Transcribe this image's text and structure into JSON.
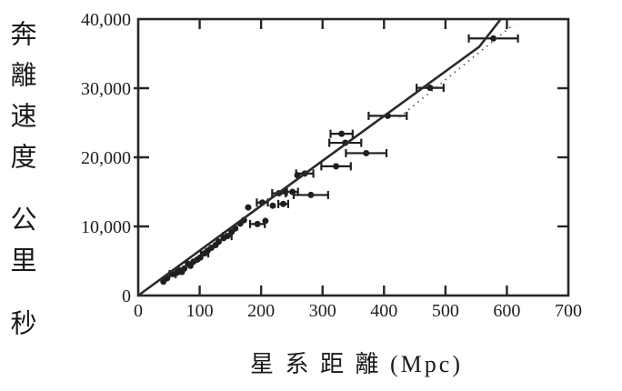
{
  "chart_data": {
    "type": "scatter",
    "title": "",
    "xlabel": "星 系 距 離 (Mpc)",
    "ylabel_groups": [
      "奔離速度",
      "公里",
      "秒"
    ],
    "xlim": [
      0,
      700
    ],
    "ylim": [
      0,
      40000
    ],
    "x_ticks": [
      0,
      100,
      200,
      300,
      400,
      500,
      600,
      700
    ],
    "x_tick_labels": [
      "0",
      "100",
      "200",
      "300",
      "400",
      "500",
      "600",
      "700"
    ],
    "y_ticks": [
      0,
      10000,
      20000,
      30000,
      40000
    ],
    "y_tick_labels": [
      "0",
      "10,000",
      "20,000",
      "30,000",
      "40,000"
    ],
    "grid": false,
    "legend": null,
    "colors": {
      "marker": "#1f1f1f",
      "fit_line": "#2b2b2b",
      "dotted_line": "#4a4a4a",
      "frame": "#262626",
      "background": "#ffffff"
    },
    "points": [
      [
        578,
        37200,
        40
      ],
      [
        475,
        30050,
        22
      ],
      [
        406,
        26000,
        31
      ],
      [
        371,
        20600,
        33
      ],
      [
        337,
        22100,
        26
      ],
      [
        331,
        23400,
        18
      ],
      [
        322,
        18700,
        24
      ],
      [
        281,
        14550,
        28
      ],
      [
        271,
        17650,
        14
      ],
      [
        259,
        17400,
        0
      ],
      [
        251,
        15000,
        9
      ],
      [
        239,
        15050,
        0
      ],
      [
        236,
        13250,
        8
      ],
      [
        229,
        14800,
        11
      ],
      [
        219,
        13000,
        0
      ],
      [
        207,
        10800,
        0
      ],
      [
        202,
        13450,
        9
      ],
      [
        194,
        10350,
        12
      ],
      [
        179,
        12750,
        0
      ],
      [
        172,
        10900,
        0
      ],
      [
        166,
        10400,
        0
      ],
      [
        158,
        9700,
        0
      ],
      [
        152,
        9200,
        0
      ],
      [
        145,
        8600,
        7
      ],
      [
        139,
        8300,
        0
      ],
      [
        131,
        7800,
        0
      ],
      [
        126,
        7300,
        0
      ],
      [
        119,
        6900,
        0
      ],
      [
        113,
        6500,
        0
      ],
      [
        108,
        6100,
        6
      ],
      [
        101,
        5500,
        0
      ],
      [
        96,
        5200,
        0
      ],
      [
        90,
        4900,
        0
      ],
      [
        85,
        4300,
        0
      ],
      [
        81,
        4600,
        0
      ],
      [
        75,
        3900,
        0
      ],
      [
        71,
        3400,
        0
      ],
      [
        66,
        3700,
        0
      ],
      [
        63,
        3300,
        0
      ],
      [
        56,
        3100,
        5
      ],
      [
        47,
        2500,
        0
      ],
      [
        41,
        2000,
        0
      ]
    ],
    "fit_line": [
      [
        0,
        0
      ],
      [
        150,
        9750
      ],
      [
        300,
        19500
      ],
      [
        450,
        29200
      ],
      [
        555,
        36000
      ],
      [
        590,
        40000
      ]
    ],
    "dotted_line": [
      [
        425,
        25800
      ],
      [
        612,
        39300
      ]
    ]
  }
}
